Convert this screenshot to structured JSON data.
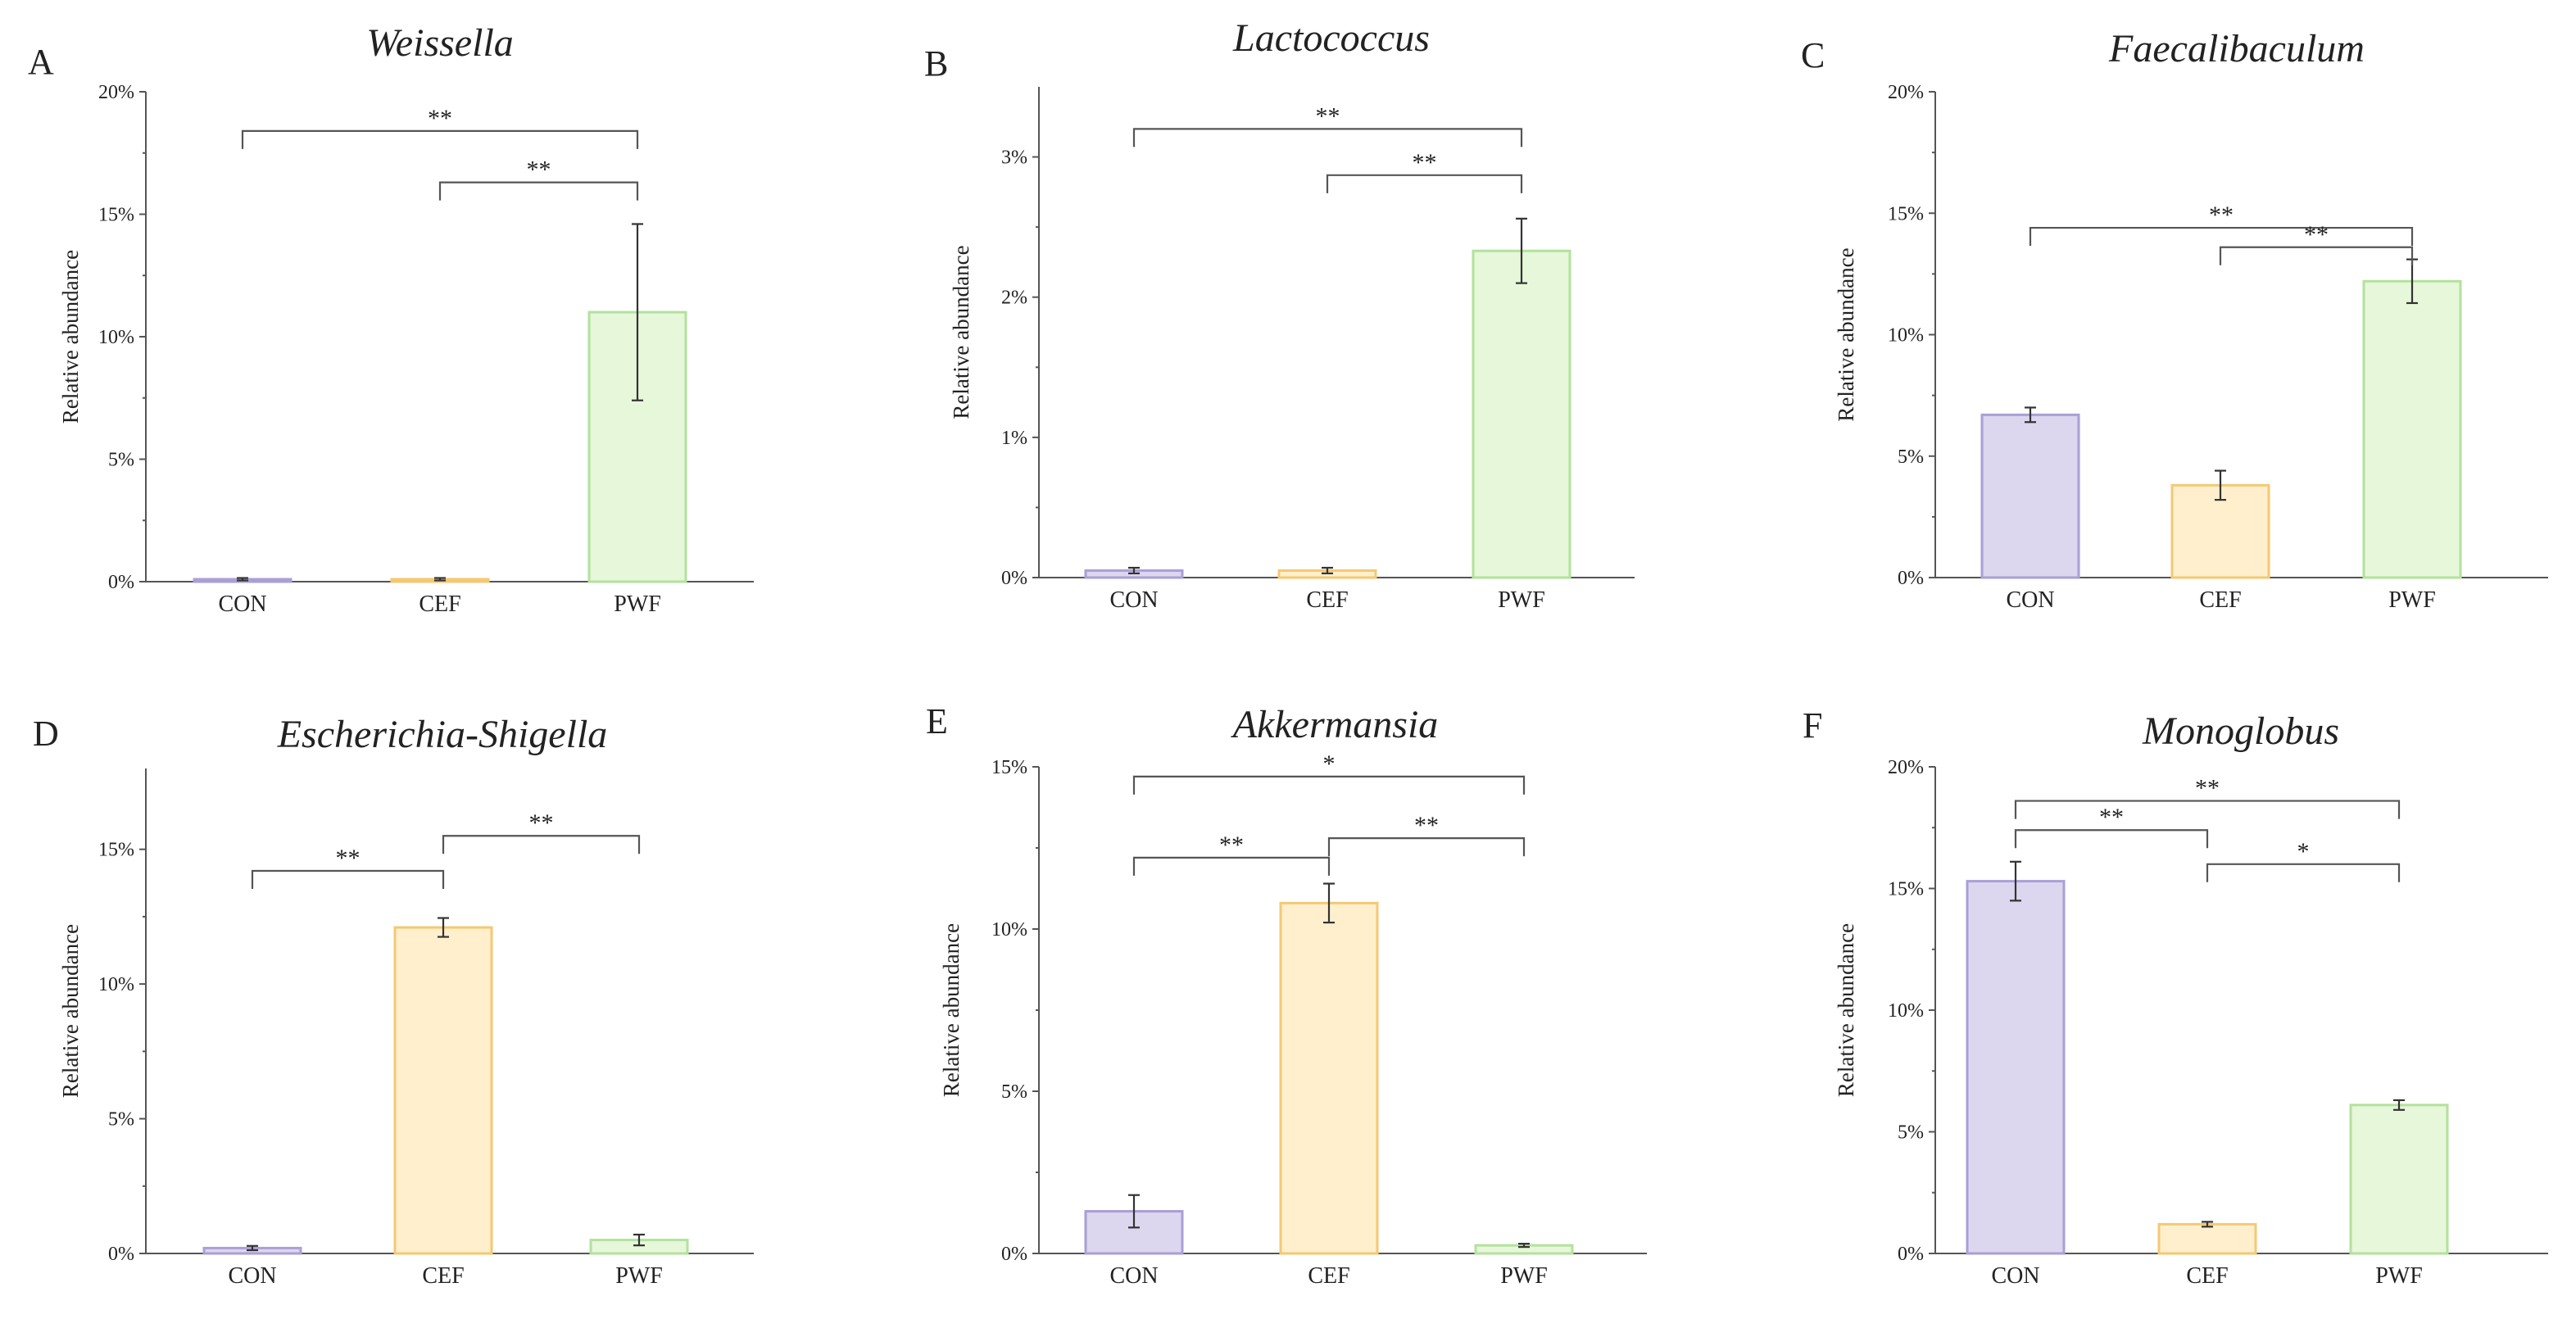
{
  "colors": {
    "CON": {
      "fill": "#dcd6ef",
      "stroke": "#aa9fd6"
    },
    "CEF": {
      "fill": "#ffefcd",
      "stroke": "#f4c874"
    },
    "PWF": {
      "fill": "#e6f7da",
      "stroke": "#b3e29c"
    },
    "axis": "#555555",
    "text": "#222222"
  },
  "chart_data": [
    {
      "type": "bar",
      "panel": "A",
      "title": "Weissella",
      "ylabel": "Relative abundance",
      "categories": [
        "CON",
        "CEF",
        "PWF"
      ],
      "values": [
        0.1,
        0.1,
        11.0
      ],
      "errors": [
        0.05,
        0.05,
        3.6
      ],
      "ylim": [
        0,
        20
      ],
      "yticks": [
        0,
        5,
        10,
        15,
        20
      ],
      "ytick_labels": [
        "0%",
        "5%",
        "10%",
        "15%",
        "20%"
      ],
      "significance": [
        {
          "from": 0,
          "to": 2,
          "label": "**",
          "level": 18.4
        },
        {
          "from": 1,
          "to": 2,
          "label": "**",
          "level": 16.3
        }
      ]
    },
    {
      "type": "bar",
      "panel": "B",
      "title": "Lactococcus",
      "ylabel": "Relative abundance",
      "categories": [
        "CON",
        "CEF",
        "PWF"
      ],
      "values": [
        0.05,
        0.05,
        2.33
      ],
      "errors": [
        0.02,
        0.02,
        0.23
      ],
      "ylim": [
        0,
        3.5
      ],
      "yticks": [
        0,
        1,
        2,
        3
      ],
      "ytick_labels": [
        "0%",
        "1%",
        "2%",
        "3%"
      ],
      "significance": [
        {
          "from": 0,
          "to": 2,
          "label": "**",
          "level": 3.2
        },
        {
          "from": 1,
          "to": 2,
          "label": "**",
          "level": 2.87
        }
      ]
    },
    {
      "type": "bar",
      "panel": "C",
      "title": "Faecalibaculum",
      "ylabel": "Relative abundance",
      "categories": [
        "CON",
        "CEF",
        "PWF"
      ],
      "values": [
        6.7,
        3.8,
        12.2
      ],
      "errors": [
        0.3,
        0.6,
        0.9
      ],
      "ylim": [
        0,
        20
      ],
      "yticks": [
        0,
        5,
        10,
        15,
        20
      ],
      "ytick_labels": [
        "0%",
        "5%",
        "10%",
        "15%",
        "20%"
      ],
      "significance": [
        {
          "from": 0,
          "to": 2,
          "label": "**",
          "level": 14.4
        },
        {
          "from": 1,
          "to": 2,
          "label": "**",
          "level": 13.6
        }
      ]
    },
    {
      "type": "bar",
      "panel": "D",
      "title": "Escherichia-Shigella",
      "ylabel": "Relative abundance",
      "categories": [
        "CON",
        "CEF",
        "PWF"
      ],
      "values": [
        0.2,
        12.1,
        0.5
      ],
      "errors": [
        0.08,
        0.35,
        0.2
      ],
      "ylim": [
        0,
        18
      ],
      "yticks": [
        0,
        5,
        10,
        15
      ],
      "ytick_labels": [
        "0%",
        "5%",
        "10%",
        "15%"
      ],
      "significance": [
        {
          "from": 0,
          "to": 1,
          "label": "**",
          "level": 14.2
        },
        {
          "from": 1,
          "to": 2,
          "label": "**",
          "level": 15.5
        }
      ]
    },
    {
      "type": "bar",
      "panel": "E",
      "title": "Akkermansia",
      "ylabel": "Relative abundance",
      "categories": [
        "CON",
        "CEF",
        "PWF"
      ],
      "values": [
        1.3,
        10.8,
        0.25
      ],
      "errors": [
        0.5,
        0.6,
        0.05
      ],
      "ylim": [
        0,
        15
      ],
      "yticks": [
        0,
        5,
        10,
        15
      ],
      "ytick_labels": [
        "0%",
        "5%",
        "10%",
        "15%"
      ],
      "significance": [
        {
          "from": 0,
          "to": 2,
          "label": "*",
          "level": 14.7
        },
        {
          "from": 0,
          "to": 1,
          "label": "**",
          "level": 12.2
        },
        {
          "from": 1,
          "to": 2,
          "label": "**",
          "level": 12.8
        }
      ]
    },
    {
      "type": "bar",
      "panel": "F",
      "title": "Monoglobus",
      "ylabel": "Relative abundance",
      "categories": [
        "CON",
        "CEF",
        "PWF"
      ],
      "values": [
        15.3,
        1.2,
        6.1
      ],
      "errors": [
        0.8,
        0.1,
        0.2
      ],
      "ylim": [
        0,
        20
      ],
      "yticks": [
        0,
        5,
        10,
        15,
        20
      ],
      "ytick_labels": [
        "0%",
        "5%",
        "10%",
        "15%",
        "20%"
      ],
      "significance": [
        {
          "from": 0,
          "to": 2,
          "label": "**",
          "level": 18.6
        },
        {
          "from": 0,
          "to": 1,
          "label": "**",
          "level": 17.4
        },
        {
          "from": 1,
          "to": 2,
          "label": "*",
          "level": 16.0
        }
      ]
    }
  ]
}
